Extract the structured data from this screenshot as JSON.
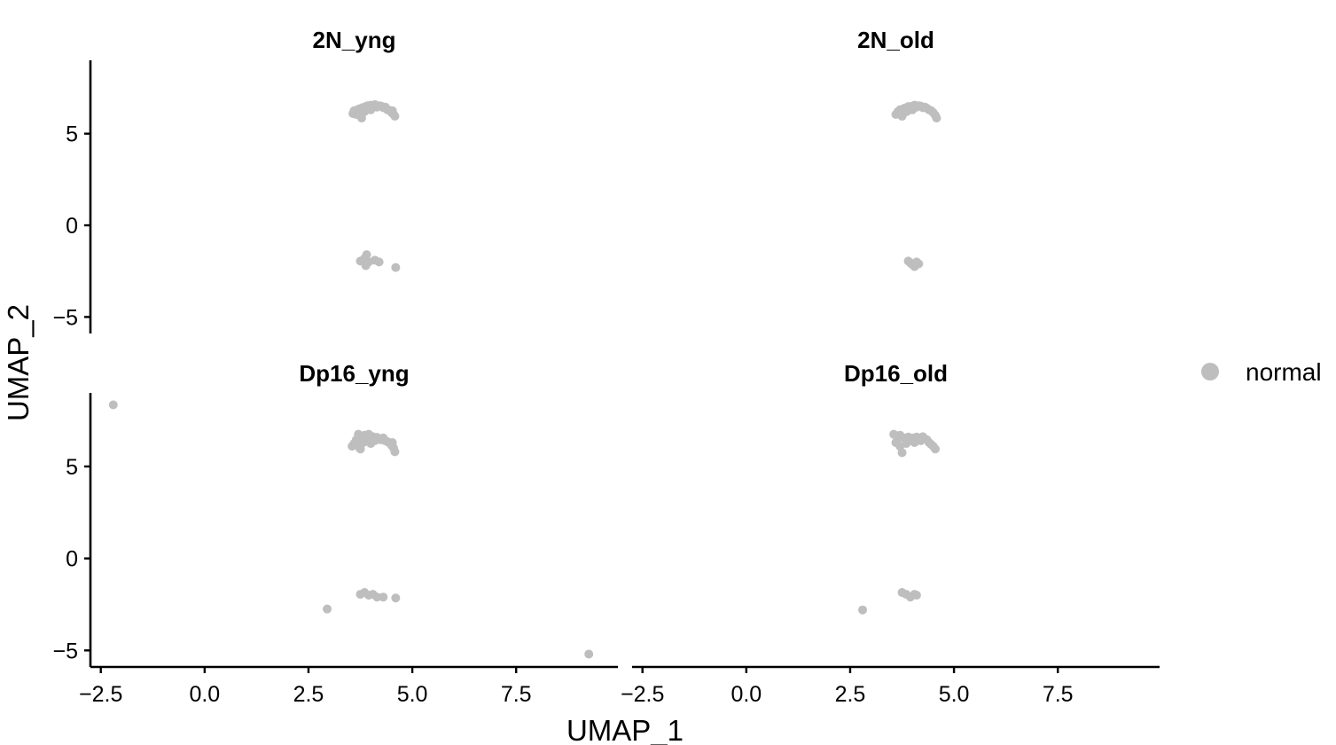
{
  "chart_data": {
    "type": "scatter",
    "xlabel": "UMAP_1",
    "ylabel": "UMAP_2",
    "xlim": [
      -2.75,
      9.95
    ],
    "ylim": [
      -5.9,
      9.0
    ],
    "x_ticks": [
      -2.5,
      0.0,
      2.5,
      5.0,
      7.5
    ],
    "x_tick_labels": [
      "−2.5",
      "0.0",
      "2.5",
      "5.0",
      "7.5"
    ],
    "y_ticks": [
      -5,
      0,
      5
    ],
    "y_tick_labels": [
      "−5",
      "0",
      "5"
    ],
    "grid": false,
    "point_color": "#bebebe",
    "legend": {
      "position": "right",
      "entries": [
        {
          "label": "normal",
          "color": "#bebebe"
        }
      ]
    },
    "panels": [
      {
        "title": "2N_yng",
        "points": [
          [
            3.57,
            6.1
          ],
          [
            3.6,
            6.25
          ],
          [
            3.65,
            6.05
          ],
          [
            3.68,
            6.3
          ],
          [
            3.72,
            6.35
          ],
          [
            3.75,
            6.0
          ],
          [
            3.78,
            5.85
          ],
          [
            3.8,
            6.42
          ],
          [
            3.85,
            6.2
          ],
          [
            3.88,
            6.48
          ],
          [
            3.92,
            6.52
          ],
          [
            3.96,
            6.4
          ],
          [
            4.0,
            6.55
          ],
          [
            4.05,
            6.5
          ],
          [
            4.1,
            6.58
          ],
          [
            4.15,
            6.45
          ],
          [
            4.2,
            6.52
          ],
          [
            4.25,
            6.5
          ],
          [
            4.3,
            6.42
          ],
          [
            4.35,
            6.45
          ],
          [
            4.4,
            6.3
          ],
          [
            4.45,
            6.28
          ],
          [
            4.5,
            6.15
          ],
          [
            4.55,
            6.05
          ],
          [
            4.58,
            5.95
          ],
          [
            4.52,
            6.25
          ],
          [
            4.0,
            6.3
          ],
          [
            3.7,
            6.15
          ],
          [
            3.75,
            -1.95
          ],
          [
            3.85,
            -1.8
          ],
          [
            3.9,
            -1.6
          ],
          [
            3.95,
            -2.0
          ],
          [
            3.88,
            -2.2
          ],
          [
            4.1,
            -1.9
          ],
          [
            4.2,
            -2.0
          ],
          [
            4.6,
            -2.3
          ]
        ]
      },
      {
        "title": "2N_old",
        "points": [
          [
            3.6,
            6.05
          ],
          [
            3.65,
            6.2
          ],
          [
            3.7,
            6.3
          ],
          [
            3.72,
            6.1
          ],
          [
            3.78,
            6.35
          ],
          [
            3.82,
            6.4
          ],
          [
            3.86,
            6.2
          ],
          [
            3.9,
            6.48
          ],
          [
            3.95,
            6.42
          ],
          [
            4.0,
            6.5
          ],
          [
            4.05,
            6.55
          ],
          [
            4.1,
            6.45
          ],
          [
            4.15,
            6.52
          ],
          [
            4.2,
            6.5
          ],
          [
            4.25,
            6.42
          ],
          [
            4.3,
            6.45
          ],
          [
            4.35,
            6.38
          ],
          [
            4.4,
            6.3
          ],
          [
            4.45,
            6.25
          ],
          [
            4.5,
            6.15
          ],
          [
            4.55,
            6.0
          ],
          [
            4.58,
            5.85
          ],
          [
            3.75,
            5.95
          ],
          [
            4.0,
            6.3
          ],
          [
            3.9,
            -1.95
          ],
          [
            3.95,
            -2.05
          ],
          [
            4.0,
            -2.15
          ],
          [
            4.05,
            -2.25
          ],
          [
            4.1,
            -2.0
          ],
          [
            4.15,
            -2.1
          ]
        ]
      },
      {
        "title": "Dp16_yng",
        "points": [
          [
            -2.2,
            8.35
          ],
          [
            3.55,
            6.1
          ],
          [
            3.6,
            6.25
          ],
          [
            3.65,
            6.45
          ],
          [
            3.7,
            6.75
          ],
          [
            3.72,
            6.05
          ],
          [
            3.78,
            6.6
          ],
          [
            3.82,
            6.3
          ],
          [
            3.85,
            6.7
          ],
          [
            3.9,
            6.5
          ],
          [
            3.95,
            6.75
          ],
          [
            4.0,
            6.55
          ],
          [
            4.05,
            6.62
          ],
          [
            4.1,
            6.4
          ],
          [
            4.15,
            6.58
          ],
          [
            4.2,
            6.5
          ],
          [
            4.25,
            6.45
          ],
          [
            4.3,
            6.55
          ],
          [
            4.35,
            6.4
          ],
          [
            4.4,
            6.35
          ],
          [
            4.45,
            6.28
          ],
          [
            4.5,
            6.15
          ],
          [
            4.55,
            6.0
          ],
          [
            4.58,
            5.8
          ],
          [
            4.52,
            6.3
          ],
          [
            3.75,
            5.95
          ],
          [
            4.0,
            6.25
          ],
          [
            3.75,
            -1.95
          ],
          [
            3.85,
            -1.85
          ],
          [
            3.95,
            -2.0
          ],
          [
            4.05,
            -1.95
          ],
          [
            4.15,
            -2.1
          ],
          [
            4.3,
            -2.1
          ],
          [
            4.6,
            -2.15
          ],
          [
            2.95,
            -2.75
          ],
          [
            9.25,
            -5.2
          ]
        ]
      },
      {
        "title": "Dp16_old",
        "points": [
          [
            3.55,
            6.75
          ],
          [
            3.6,
            6.3
          ],
          [
            3.65,
            6.5
          ],
          [
            3.7,
            6.7
          ],
          [
            3.75,
            5.75
          ],
          [
            3.8,
            6.55
          ],
          [
            3.85,
            6.25
          ],
          [
            3.9,
            6.6
          ],
          [
            3.95,
            6.4
          ],
          [
            4.0,
            6.55
          ],
          [
            4.05,
            6.3
          ],
          [
            4.1,
            6.6
          ],
          [
            4.15,
            6.5
          ],
          [
            4.2,
            6.4
          ],
          [
            4.25,
            6.62
          ],
          [
            4.3,
            6.5
          ],
          [
            4.35,
            6.45
          ],
          [
            4.4,
            6.3
          ],
          [
            4.45,
            6.2
          ],
          [
            4.5,
            6.1
          ],
          [
            4.55,
            5.95
          ],
          [
            3.7,
            6.1
          ],
          [
            3.75,
            -1.85
          ],
          [
            3.85,
            -1.95
          ],
          [
            3.95,
            -2.1
          ],
          [
            4.05,
            -1.95
          ],
          [
            4.1,
            -2.0
          ],
          [
            2.8,
            -2.8
          ]
        ]
      }
    ]
  }
}
